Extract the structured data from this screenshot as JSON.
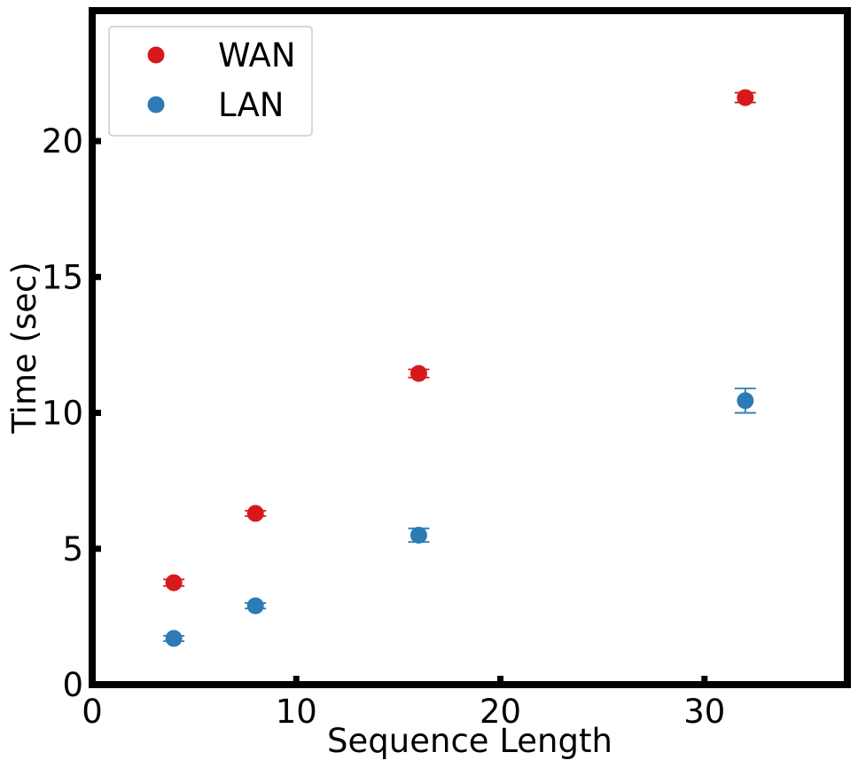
{
  "chart_data": {
    "type": "scatter",
    "xlabel": "Sequence Length",
    "ylabel": "Time (sec)",
    "xlim": [
      0,
      37
    ],
    "ylim": [
      0,
      24.8
    ],
    "xticks": [
      0,
      10,
      20,
      30
    ],
    "yticks": [
      0,
      5,
      10,
      15,
      20
    ],
    "legend_position": "top-left",
    "grid": false,
    "series": [
      {
        "name": "WAN",
        "color": "#d7191c",
        "x": [
          4,
          8,
          16,
          32
        ],
        "y": [
          3.75,
          6.3,
          11.45,
          21.6
        ],
        "yerr": [
          0.12,
          0.1,
          0.15,
          0.18
        ]
      },
      {
        "name": "LAN",
        "color": "#2c7bb6",
        "x": [
          4,
          8,
          16,
          32
        ],
        "y": [
          1.7,
          2.9,
          5.5,
          10.45
        ],
        "yerr": [
          0.1,
          0.1,
          0.25,
          0.45
        ]
      }
    ]
  }
}
